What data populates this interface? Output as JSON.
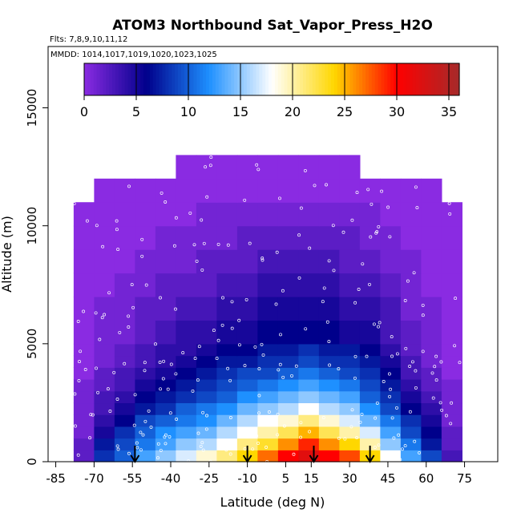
{
  "chart_data": {
    "type": "heatmap",
    "title": "ATOM3 Northbound Sat_Vapor_Press_H2O",
    "subtitle_flights": "Flts: 7,8,9,10,11,12",
    "subtitle_dates": "MMDD: 1014,1017,1019,1020,1023,1025",
    "xlabel": "Latitude (deg N)",
    "ylabel": "Altitude (m)",
    "xlim": [
      -88,
      88
    ],
    "ylim": [
      0,
      17600
    ],
    "x_ticks": [
      -85,
      -70,
      -55,
      -40,
      -25,
      -10,
      5,
      15,
      30,
      45,
      60,
      75
    ],
    "y_ticks": [
      0,
      5000,
      10000,
      15000
    ],
    "colorbar": {
      "min": 0,
      "max": 36,
      "ticks": [
        0,
        5,
        10,
        15,
        20,
        25,
        30,
        35
      ],
      "colors": [
        "#8a2be2",
        "#00008b",
        "#1e90ff",
        "#ffffff",
        "#ffd700",
        "#ff0000",
        "#a52a2a"
      ]
    },
    "lat_edges": [
      -78,
      -70,
      -62,
      -54,
      -46,
      -38,
      -30,
      -22,
      -14,
      -6,
      2,
      10,
      18,
      26,
      34,
      42,
      50,
      58,
      66,
      74
    ],
    "altitude_bands_m": [
      0,
      500,
      1000,
      1500,
      2000,
      2500,
      3000,
      3500,
      4000,
      4500,
      5000,
      6000,
      7000,
      8000,
      9000,
      10000,
      11000,
      12000,
      13000
    ],
    "sat_vapor_press_grid": [
      [
        2,
        8,
        10,
        13,
        15,
        17,
        19,
        21,
        24,
        27,
        30,
        32,
        30,
        28,
        24,
        18,
        13,
        9,
        3
      ],
      [
        2,
        7,
        9,
        11,
        13,
        15,
        16,
        18,
        21,
        23,
        26,
        29,
        26,
        24,
        20,
        15,
        11,
        7,
        2
      ],
      [
        1,
        5,
        8,
        10,
        12,
        13,
        14,
        16,
        18,
        20,
        22,
        25,
        22,
        20,
        17,
        13,
        9,
        6,
        2
      ],
      [
        1,
        4,
        6,
        9,
        10,
        11,
        12,
        14,
        16,
        18,
        19,
        21,
        19,
        17,
        14,
        11,
        8,
        5,
        1
      ],
      [
        1,
        3,
        5,
        7,
        8,
        10,
        11,
        12,
        14,
        15,
        16,
        18,
        16,
        15,
        12,
        9,
        6,
        4,
        1
      ],
      [
        1,
        3,
        4,
        6,
        7,
        8,
        9,
        10,
        12,
        13,
        14,
        15,
        14,
        13,
        10,
        8,
        5,
        3,
        1
      ],
      [
        1,
        2,
        3,
        5,
        6,
        7,
        8,
        9,
        10,
        11,
        12,
        13,
        12,
        11,
        9,
        7,
        4,
        2,
        1
      ],
      [
        0,
        2,
        3,
        4,
        5,
        6,
        7,
        8,
        9,
        9,
        10,
        11,
        10,
        9,
        8,
        6,
        3,
        2,
        0
      ],
      [
        0,
        1,
        2,
        3,
        4,
        5,
        6,
        7,
        7,
        8,
        8,
        9,
        8,
        8,
        7,
        5,
        3,
        1,
        0
      ],
      [
        0,
        1,
        2,
        3,
        4,
        4,
        5,
        6,
        6,
        7,
        7,
        8,
        7,
        7,
        6,
        4,
        2,
        1,
        0
      ],
      [
        0,
        1,
        1,
        2,
        3,
        4,
        4,
        5,
        5,
        6,
        6,
        6,
        6,
        5,
        5,
        3,
        2,
        1,
        0
      ],
      [
        0,
        1,
        1,
        2,
        2,
        3,
        3,
        4,
        4,
        5,
        5,
        5,
        5,
        4,
        4,
        3,
        1,
        1,
        0
      ],
      [
        0,
        0,
        1,
        1,
        2,
        2,
        2,
        3,
        3,
        4,
        4,
        4,
        4,
        3,
        3,
        2,
        1,
        0,
        0
      ],
      [
        0,
        0,
        0,
        1,
        1,
        1,
        2,
        2,
        2,
        3,
        3,
        3,
        3,
        2,
        2,
        1,
        1,
        0,
        0
      ],
      [
        0,
        0,
        0,
        0,
        1,
        1,
        1,
        1,
        2,
        2,
        2,
        2,
        2,
        2,
        1,
        1,
        0,
        0,
        0
      ],
      [
        0,
        0,
        0,
        0,
        0,
        0,
        1,
        1,
        1,
        1,
        1,
        1,
        1,
        1,
        1,
        0,
        0,
        0,
        0
      ],
      [
        null,
        0,
        0,
        0,
        0,
        0,
        0,
        0,
        0,
        0,
        0,
        0,
        0,
        0,
        0,
        0,
        0,
        0,
        null
      ],
      [
        null,
        null,
        null,
        null,
        null,
        0,
        0,
        0,
        0,
        0,
        0,
        0,
        0,
        0,
        null,
        null,
        null,
        null,
        null
      ]
    ],
    "arrow_latitudes": [
      -54,
      -10,
      16,
      38
    ],
    "grid": false
  }
}
